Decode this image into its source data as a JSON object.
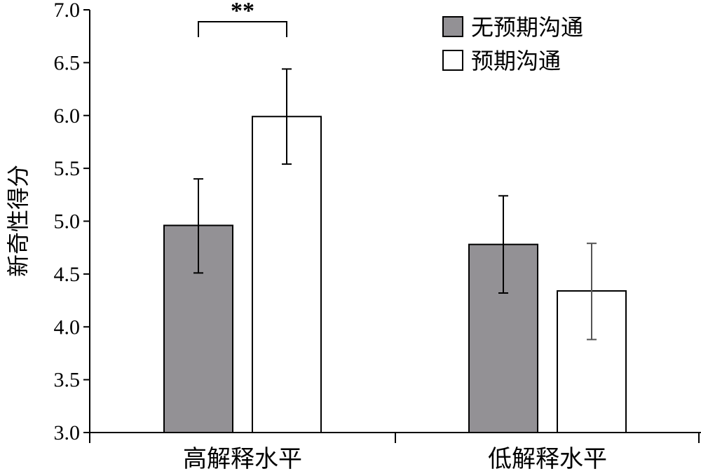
{
  "chart_data": {
    "type": "bar",
    "categories": [
      "高解释水平",
      "低解释水平"
    ],
    "series": [
      {
        "name": "无预期沟通",
        "values": [
          4.96,
          4.78
        ],
        "error_high": [
          5.4,
          5.24
        ],
        "error_low": [
          4.51,
          4.32
        ],
        "color": "#939195"
      },
      {
        "name": "预期沟通",
        "values": [
          5.99,
          4.34
        ],
        "error_high": [
          6.44,
          4.79
        ],
        "error_low": [
          5.54,
          3.88
        ],
        "color": "#ffffff"
      }
    ],
    "ylabel": "新奇性得分",
    "xlabel": "",
    "ylim": [
      3.0,
      7.0
    ],
    "yticks": [
      "3.0",
      "3.5",
      "4.0",
      "4.5",
      "5.0",
      "5.5",
      "6.0",
      "6.5",
      "7.0"
    ],
    "legend_position": "top-right",
    "grid": false,
    "annotations": [
      {
        "text": "**",
        "category_index": 0,
        "between_series": [
          0,
          1
        ]
      }
    ]
  }
}
